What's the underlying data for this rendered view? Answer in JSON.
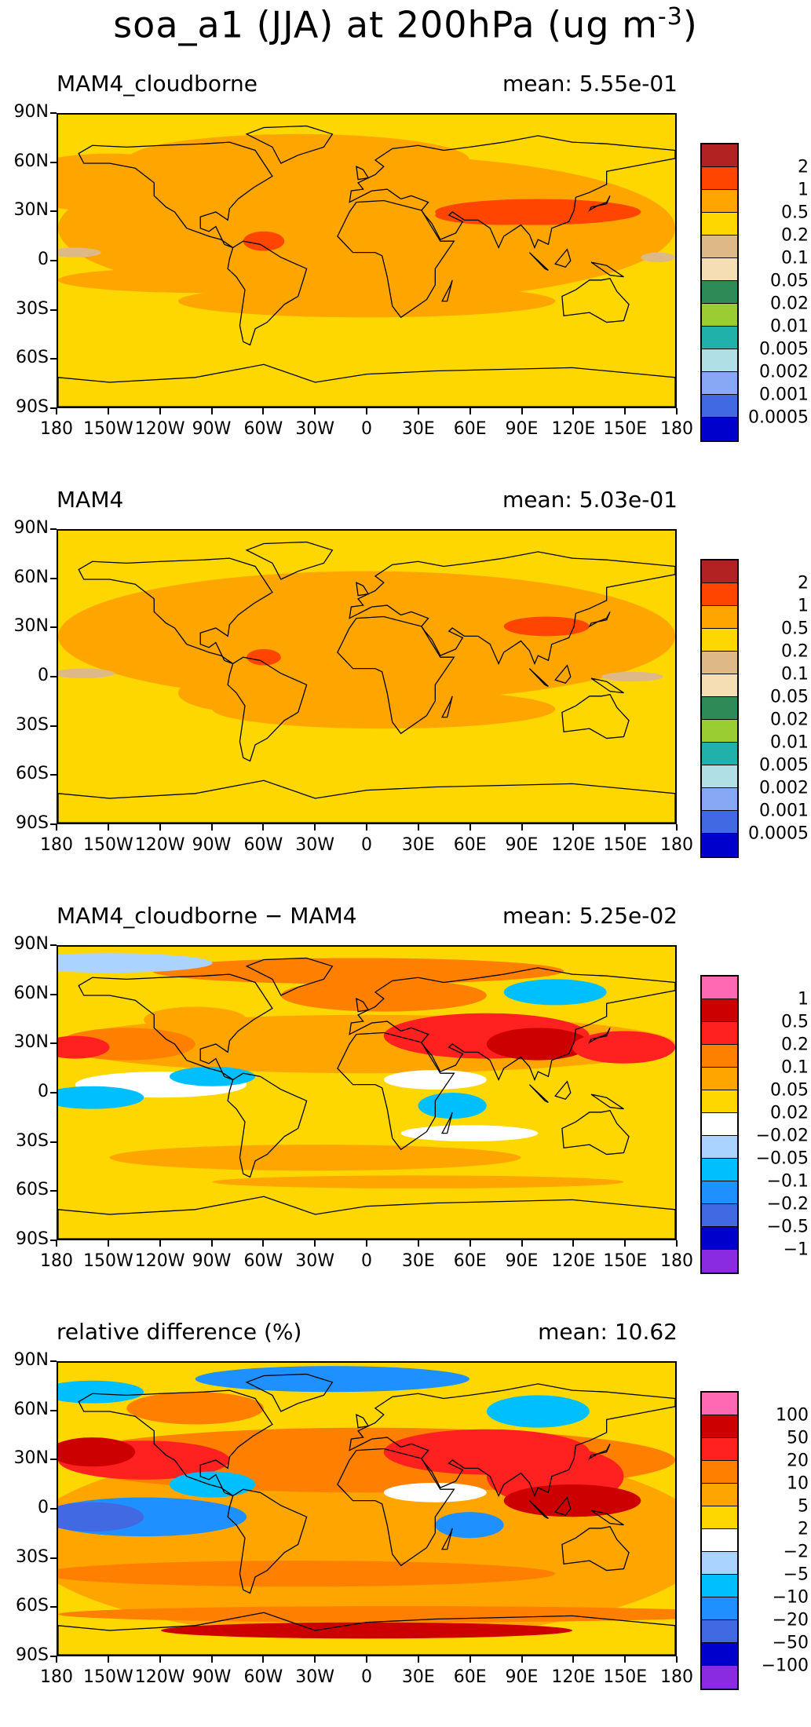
{
  "title": {
    "main": "soa_a1 (JJA) at 200hPa (ug m",
    "superscript": "-3",
    "close": ")"
  },
  "axes": {
    "lat_labels": [
      "90N",
      "60N",
      "30N",
      "0",
      "30S",
      "60S",
      "90S"
    ],
    "lon_labels": [
      "180",
      "150W",
      "120W",
      "90W",
      "60W",
      "30W",
      "0",
      "30E",
      "60E",
      "90E",
      "120E",
      "150E",
      "180"
    ]
  },
  "panels": [
    {
      "title": "MAM4_cloudborne",
      "mean": "mean: 5.55e-01",
      "kind": "abs"
    },
    {
      "title": "MAM4",
      "mean": "mean: 5.03e-01",
      "kind": "abs"
    },
    {
      "title": "MAM4_cloudborne − MAM4",
      "mean": "mean: 5.25e-02",
      "kind": "diff"
    },
    {
      "title": "relative difference (%)",
      "mean": "mean: 10.62",
      "kind": "rel"
    }
  ],
  "colorbars": {
    "abs": {
      "labels": [
        "2",
        "1",
        "0.5",
        "0.2",
        "0.1",
        "0.05",
        "0.02",
        "0.01",
        "0.005",
        "0.002",
        "0.001",
        "0.0005"
      ],
      "colors": [
        "#b22222",
        "#ff4500",
        "#ffa500",
        "#ffd700",
        "#deb887",
        "#f5deb3",
        "#2e8b57",
        "#9acd32",
        "#20b2aa",
        "#b0e0e6",
        "#87a8f5",
        "#4169e1",
        "#0000cd"
      ]
    },
    "diff": {
      "labels": [
        "1",
        "0.5",
        "0.2",
        "0.1",
        "0.05",
        "0.02",
        "−0.02",
        "−0.05",
        "−0.1",
        "−0.2",
        "−0.5",
        "−1"
      ],
      "colors": [
        "#ff69b4",
        "#cd0000",
        "#ff2020",
        "#ff7f00",
        "#ffa500",
        "#ffd700",
        "#ffffff",
        "#aad4ff",
        "#00bfff",
        "#1e90ff",
        "#4169e1",
        "#0000cd",
        "#8a2be2"
      ]
    },
    "rel": {
      "labels": [
        "100",
        "50",
        "20",
        "10",
        "5",
        "2",
        "−2",
        "−5",
        "−10",
        "−20",
        "−50",
        "−100"
      ],
      "colors": [
        "#ff69b4",
        "#cd0000",
        "#ff2020",
        "#ff7f00",
        "#ffa500",
        "#ffd700",
        "#ffffff",
        "#aad4ff",
        "#00bfff",
        "#1e90ff",
        "#4169e1",
        "#0000cd",
        "#8a2be2"
      ]
    }
  }
}
